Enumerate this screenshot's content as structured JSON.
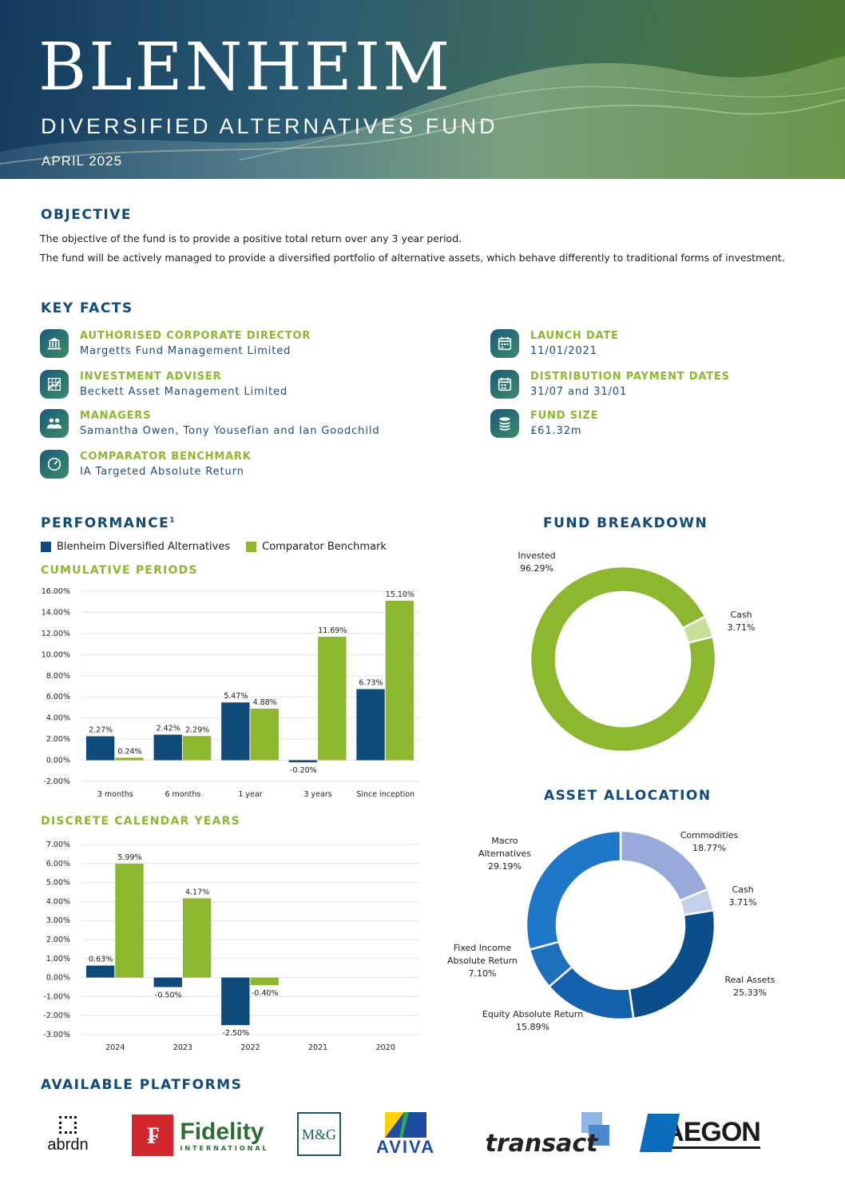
{
  "header": {
    "brand": "BLENHEIM",
    "subtitle": "DIVERSIFIED ALTERNATIVES FUND",
    "date": "APRIL 2025"
  },
  "objective": {
    "heading": "OBJECTIVE",
    "line1": "The objective of the fund is to provide a positive total return over any 3 year period.",
    "line2": "The fund will be actively managed to provide a diversified portfolio of alternative assets, which behave differently to traditional forms of investment."
  },
  "key_facts": {
    "heading": "KEY FACTS",
    "left": [
      {
        "label": "AUTHORISED CORPORATE DIRECTOR",
        "value": "Margetts Fund Management Limited",
        "icon": "bank-icon"
      },
      {
        "label": "INVESTMENT ADVISER",
        "value": "Beckett Asset Management Limited",
        "icon": "chart-grid-icon"
      },
      {
        "label": "MANAGERS",
        "value": "Samantha Owen, Tony Yousefian and Ian Goodchild",
        "icon": "people-icon"
      },
      {
        "label": "COMPARATOR BENCHMARK",
        "value": "IA Targeted Absolute Return",
        "icon": "gauge-icon"
      }
    ],
    "right": [
      {
        "label": "LAUNCH DATE",
        "value": "11/01/2021",
        "icon": "calendar-icon"
      },
      {
        "label": "DISTRIBUTION PAYMENT DATES",
        "value": "31/07 and 31/01",
        "icon": "calendar-icon"
      },
      {
        "label": "FUND SIZE",
        "value": "£61.32m",
        "icon": "coins-icon"
      }
    ]
  },
  "performance": {
    "heading": "PERFORMANCE",
    "footnote": "1",
    "legend": [
      "Blenheim Diversified Alternatives",
      "Comparator Benchmark"
    ],
    "colors": {
      "fund": "#0f4a7a",
      "benchmark": "#8db72f"
    },
    "cumulative_heading": "CUMULATIVE PERIODS",
    "discrete_heading": "DISCRETE CALENDAR YEARS"
  },
  "fund_breakdown": {
    "heading": "FUND BREAKDOWN",
    "labels": [
      {
        "name": "Invested",
        "value": "96.29%"
      },
      {
        "name": "Cash",
        "value": "3.71%"
      }
    ]
  },
  "asset_allocation": {
    "heading": "ASSET ALLOCATION",
    "labels": [
      {
        "name": "Commodities",
        "value": "18.77%"
      },
      {
        "name": "Cash",
        "value": "3.71%"
      },
      {
        "name": "Real Assets",
        "value": "25.33%"
      },
      {
        "name": "Equity Absolute Return",
        "value": "15.89%"
      },
      {
        "name": "Fixed Income Absolute Return",
        "value": "7.10%"
      },
      {
        "name": "Macro Alternatives",
        "value": "29.19%"
      }
    ]
  },
  "platforms": {
    "heading": "AVAILABLE PLATFORMS",
    "names": [
      "abrdn",
      "Fidelity",
      "INTERNATIONAL",
      "M&G",
      "AVIVA",
      "transact",
      "AEGON"
    ]
  },
  "chart_data": [
    {
      "type": "bar",
      "title": "CUMULATIVE PERIODS",
      "categories": [
        "3 months",
        "6 months",
        "1 year",
        "3 years",
        "Since inception"
      ],
      "series": [
        {
          "name": "Blenheim Diversified Alternatives",
          "values": [
            2.27,
            2.42,
            5.47,
            -0.2,
            6.73
          ],
          "labels": [
            "2.27%",
            "2.42%",
            "5.47%",
            "-0.20%",
            "6.73%"
          ]
        },
        {
          "name": "Comparator Benchmark",
          "values": [
            0.24,
            2.29,
            4.88,
            11.69,
            15.1
          ],
          "labels": [
            "0.24%",
            "2.29%",
            "4.88%",
            "11.69%",
            "15.10%"
          ]
        }
      ],
      "ylim": [
        -2,
        16
      ],
      "yticks": [
        "-2.00%",
        "0.00%",
        "2.00%",
        "4.00%",
        "6.00%",
        "8.00%",
        "10.00%",
        "12.00%",
        "14.00%",
        "16.00%"
      ],
      "grid": true
    },
    {
      "type": "bar",
      "title": "DISCRETE CALENDAR YEARS",
      "categories": [
        "2024",
        "2023",
        "2022",
        "2021",
        "2020"
      ],
      "series": [
        {
          "name": "Blenheim Diversified Alternatives",
          "values": [
            0.63,
            -0.5,
            -2.5,
            null,
            null
          ],
          "labels": [
            "0.63%",
            "-0.50%",
            "-2.50%",
            "",
            ""
          ]
        },
        {
          "name": "Comparator Benchmark",
          "values": [
            5.99,
            4.17,
            -0.4,
            null,
            null
          ],
          "labels": [
            "5.99%",
            "4.17%",
            "-0.40%",
            "",
            ""
          ]
        }
      ],
      "ylim": [
        -3,
        7
      ],
      "yticks": [
        "-3.00%",
        "-2.00%",
        "-1.00%",
        "0.00%",
        "1.00%",
        "2.00%",
        "3.00%",
        "4.00%",
        "5.00%",
        "6.00%",
        "7.00%"
      ],
      "grid": true
    },
    {
      "type": "pie",
      "title": "FUND BREAKDOWN",
      "categories": [
        "Invested",
        "Cash"
      ],
      "values": [
        96.29,
        3.71
      ],
      "colors": [
        "#8db72f",
        "#c8df9b"
      ]
    },
    {
      "type": "pie",
      "title": "ASSET ALLOCATION",
      "categories": [
        "Commodities",
        "Cash",
        "Real Assets",
        "Equity Absolute Return",
        "Fixed Income Absolute Return",
        "Macro Alternatives"
      ],
      "values": [
        18.77,
        3.71,
        25.33,
        15.89,
        7.1,
        29.19
      ],
      "colors": [
        "#97aad9",
        "#c4cfea",
        "#0a4f8c",
        "#1461ad",
        "#1e70bd",
        "#1f77c9"
      ]
    }
  ]
}
